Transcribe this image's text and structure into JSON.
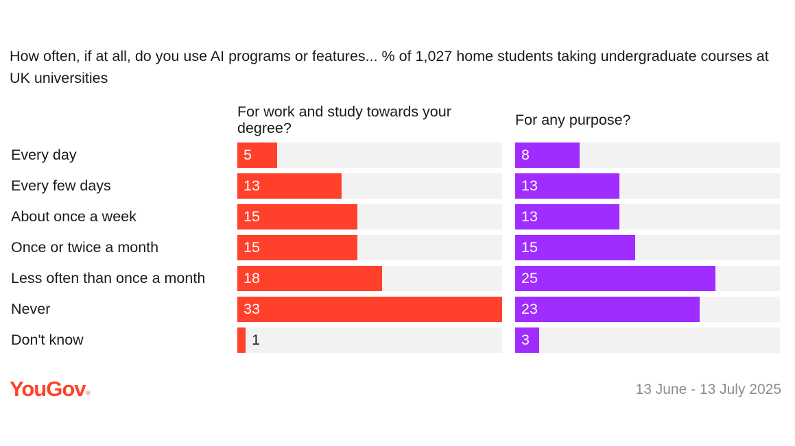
{
  "title": "How often, if at all, do you use AI programs or features... % of 1,027 home students taking undergraduate courses at UK universities",
  "logo_text": "YouGov",
  "logo_mark": "®",
  "date_text": "13 June - 13 July 2025",
  "colors": {
    "series1": "#ff412c",
    "series2": "#a12cff",
    "track": "#f2f2f2",
    "logo": "#ff412c"
  },
  "chart_data": {
    "type": "bar",
    "orientation": "horizontal",
    "categories": [
      "Every day",
      "Every few days",
      "About once a week",
      "Once or twice a month",
      "Less often than once a month",
      "Never",
      "Don't know"
    ],
    "series": [
      {
        "name": "For work and study towards your degree?",
        "values": [
          5,
          13,
          15,
          15,
          18,
          33,
          1
        ]
      },
      {
        "name": "For any purpose?",
        "values": [
          8,
          13,
          13,
          15,
          25,
          23,
          3
        ]
      }
    ],
    "xlim": [
      0,
      33
    ],
    "grid": false,
    "legend": "none"
  }
}
